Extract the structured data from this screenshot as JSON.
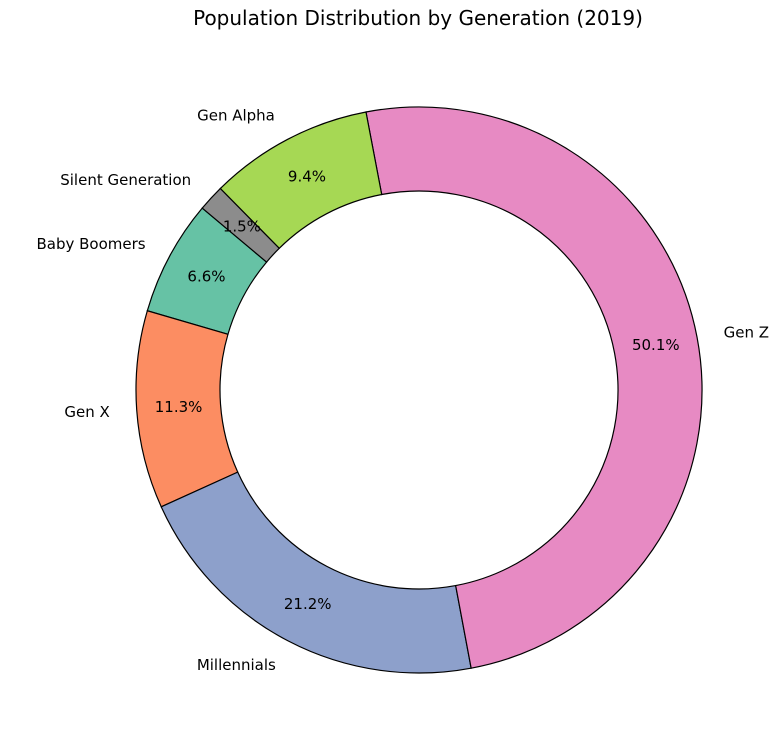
{
  "chart_data": {
    "type": "pie",
    "style": "donut",
    "title": "Population Distribution by Generation (2019)",
    "slices": [
      {
        "label": "Baby Boomers",
        "value": 6.6,
        "pct_label": "6.6%",
        "color": "#66c2a5"
      },
      {
        "label": "Gen X",
        "value": 11.3,
        "pct_label": "11.3%",
        "color": "#fc8d62"
      },
      {
        "label": "Millennials",
        "value": 21.2,
        "pct_label": "21.2%",
        "color": "#8da0cb"
      },
      {
        "label": "Gen Z",
        "value": 50.1,
        "pct_label": "50.1%",
        "color": "#e78ac3"
      },
      {
        "label": "Gen Alpha",
        "value": 9.4,
        "pct_label": "9.4%",
        "color": "#a6d854"
      },
      {
        "label": "Silent Generation",
        "value": 1.5,
        "pct_label": "1.5%",
        "color": "#8c8c8c"
      }
    ],
    "start_angle_deg": 140,
    "direction": "counterclockwise",
    "edge_color": "#000000",
    "legend": "none"
  }
}
